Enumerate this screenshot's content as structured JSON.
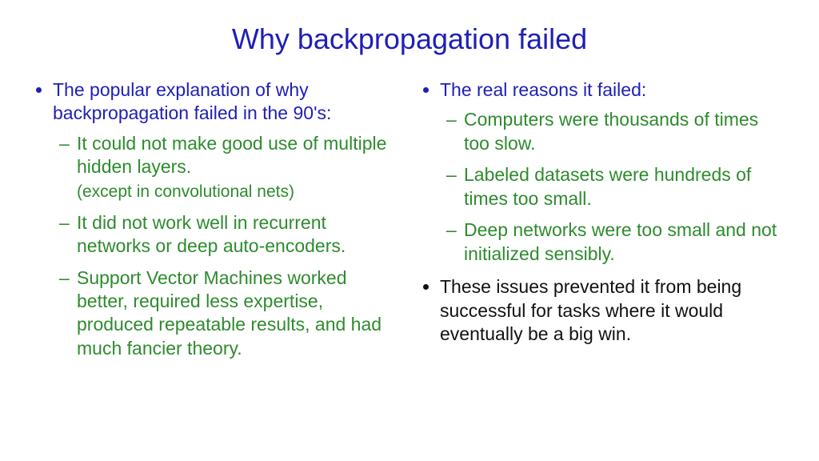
{
  "colors": {
    "title": "#1f1fb5",
    "blue": "#1f1fb5",
    "green": "#2e8b2e",
    "black": "#111111"
  },
  "title": "Why backpropagation failed",
  "left": {
    "lead": "The popular explanation of why backpropagation failed in the 90's:",
    "items": [
      {
        "main": "It could not make good use of multiple hidden layers.",
        "paren": "(except in convolutional nets)"
      },
      {
        "main": "It did not work well in recurrent networks or deep auto-encoders."
      },
      {
        "main": "Support Vector Machines worked better, required less expertise, produced repeatable results,  and had much fancier theory."
      }
    ]
  },
  "right": {
    "lead": "The real reasons it failed:",
    "items": [
      {
        "main": "Computers were thousands of times too slow."
      },
      {
        "main": "Labeled datasets were hundreds of times too small."
      },
      {
        "main": "Deep networks were too small and not initialized sensibly."
      }
    ],
    "trailer": "These issues prevented it from being successful for tasks where it would eventually be a big win."
  }
}
